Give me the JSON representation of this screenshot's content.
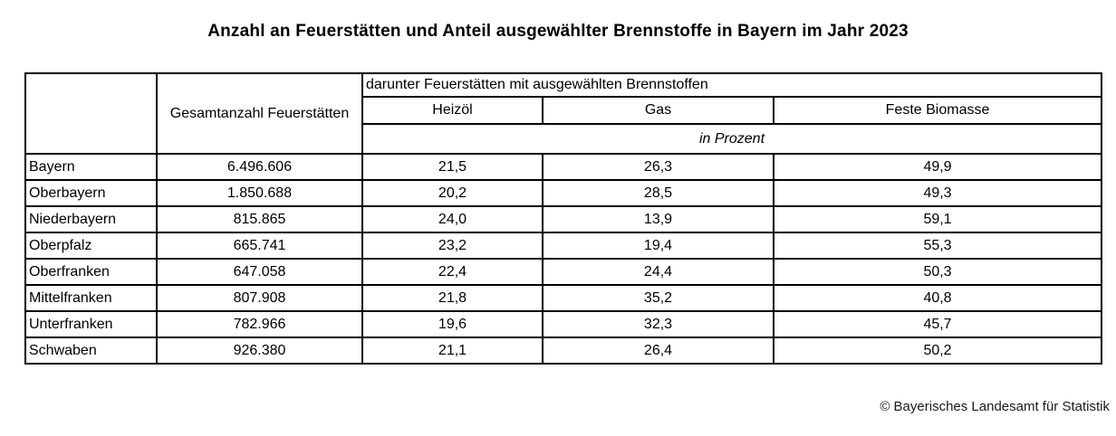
{
  "page": {
    "title": "Anzahl an Feuerstätten und Anteil ausgewählter Brennstoffe in Bayern im Jahr 2023",
    "copyright": "© Bayerisches Landesamt für Statistik"
  },
  "table": {
    "header": {
      "total_label": "Gesamtanzahl\nFeuerstätten",
      "group_label": "darunter Feuerstätten mit ausgewählten Brennstoffen",
      "fuel_columns": [
        "Heizöl",
        "Gas",
        "Feste Biomasse"
      ],
      "unit_label": "in Prozent"
    },
    "rows": [
      {
        "region": "Bayern",
        "total": "6.496.606",
        "heizoel": "21,5",
        "gas": "26,3",
        "feste_biomasse": "49,9"
      },
      {
        "region": "Oberbayern",
        "total": "1.850.688",
        "heizoel": "20,2",
        "gas": "28,5",
        "feste_biomasse": "49,3"
      },
      {
        "region": "Niederbayern",
        "total": "815.865",
        "heizoel": "24,0",
        "gas": "13,9",
        "feste_biomasse": "59,1"
      },
      {
        "region": "Oberpfalz",
        "total": "665.741",
        "heizoel": "23,2",
        "gas": "19,4",
        "feste_biomasse": "55,3"
      },
      {
        "region": "Oberfranken",
        "total": "647.058",
        "heizoel": "22,4",
        "gas": "24,4",
        "feste_biomasse": "50,3"
      },
      {
        "region": "Mittelfranken",
        "total": "807.908",
        "heizoel": "21,8",
        "gas": "35,2",
        "feste_biomasse": "40,8"
      },
      {
        "region": "Unterfranken",
        "total": "782.966",
        "heizoel": "19,6",
        "gas": "32,3",
        "feste_biomasse": "45,7"
      },
      {
        "region": "Schwaben",
        "total": "926.380",
        "heizoel": "21,1",
        "gas": "26,4",
        "feste_biomasse": "50,2"
      }
    ]
  },
  "chart_data": {
    "type": "table",
    "title": "Anzahl an Feuerstätten und Anteil ausgewählter Brennstoffe in Bayern im Jahr 2023",
    "group_header": "darunter Feuerstätten mit ausgewählten Brennstoffen",
    "unit": "in Prozent",
    "columns": [
      "Region",
      "Gesamtanzahl Feuerstätten",
      "Heizöl (%)",
      "Gas (%)",
      "Feste Biomasse (%)"
    ],
    "rows": [
      [
        "Bayern",
        6496606,
        21.5,
        26.3,
        49.9
      ],
      [
        "Oberbayern",
        1850688,
        20.2,
        28.5,
        49.3
      ],
      [
        "Niederbayern",
        815865,
        24.0,
        13.9,
        59.1
      ],
      [
        "Oberpfalz",
        665741,
        23.2,
        19.4,
        55.3
      ],
      [
        "Oberfranken",
        647058,
        22.4,
        24.4,
        50.3
      ],
      [
        "Mittelfranken",
        807908,
        21.8,
        35.2,
        40.8
      ],
      [
        "Unterfranken",
        782966,
        19.6,
        32.3,
        45.7
      ],
      [
        "Schwaben",
        926380,
        21.1,
        26.4,
        50.2
      ]
    ],
    "source": "© Bayerisches Landesamt für Statistik"
  }
}
